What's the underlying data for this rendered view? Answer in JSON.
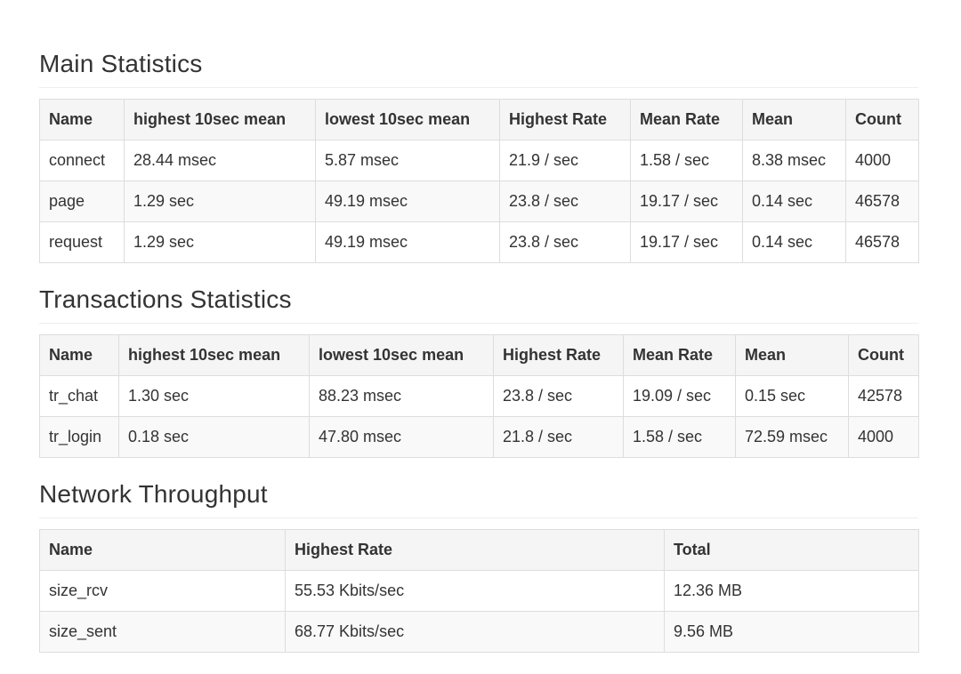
{
  "main_statistics": {
    "title": "Main Statistics",
    "columns": [
      "Name",
      "highest 10sec mean",
      "lowest 10sec mean",
      "Highest Rate",
      "Mean Rate",
      "Mean",
      "Count"
    ],
    "rows": [
      [
        "connect",
        "28.44 msec",
        "5.87 msec",
        "21.9 / sec",
        "1.58 / sec",
        "8.38 msec",
        "4000"
      ],
      [
        "page",
        "1.29 sec",
        "49.19 msec",
        "23.8 / sec",
        "19.17 / sec",
        "0.14 sec",
        "46578"
      ],
      [
        "request",
        "1.29 sec",
        "49.19 msec",
        "23.8 / sec",
        "19.17 / sec",
        "0.14 sec",
        "46578"
      ]
    ]
  },
  "transactions_statistics": {
    "title": "Transactions Statistics",
    "columns": [
      "Name",
      "highest 10sec mean",
      "lowest 10sec mean",
      "Highest Rate",
      "Mean Rate",
      "Mean",
      "Count"
    ],
    "rows": [
      [
        "tr_chat",
        "1.30 sec",
        "88.23 msec",
        "23.8 / sec",
        "19.09 / sec",
        "0.15 sec",
        "42578"
      ],
      [
        "tr_login",
        "0.18 sec",
        "47.80 msec",
        "21.8 / sec",
        "1.58 / sec",
        "72.59 msec",
        "4000"
      ]
    ]
  },
  "network_throughput": {
    "title": "Network Throughput",
    "columns": [
      "Name",
      "Highest Rate",
      "Total"
    ],
    "rows": [
      [
        "size_rcv",
        "55.53 Kbits/sec",
        "12.36 MB"
      ],
      [
        "size_sent",
        "68.77 Kbits/sec",
        "9.56 MB"
      ]
    ]
  }
}
